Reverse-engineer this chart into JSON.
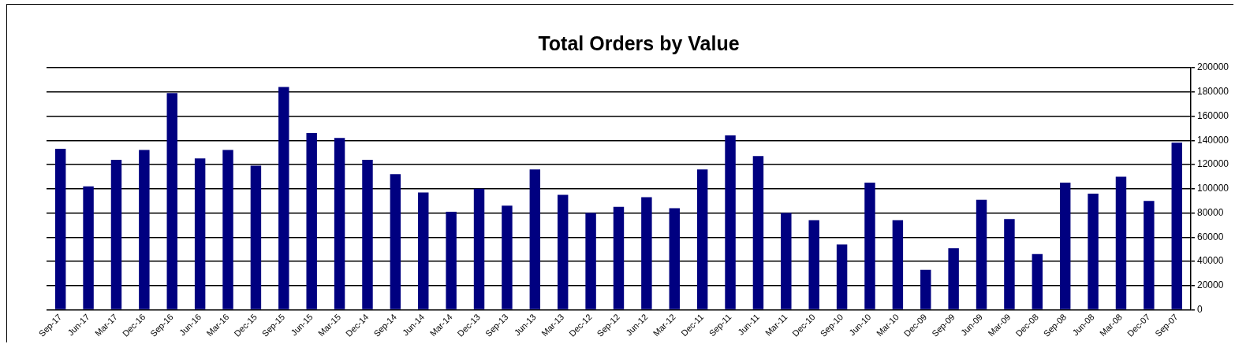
{
  "chart_data": {
    "type": "bar",
    "title": "Total Orders by Value",
    "categories": [
      "Sep-17",
      "Jun-17",
      "Mar-17",
      "Dec-16",
      "Sep-16",
      "Jun-16",
      "Mar-16",
      "Dec-15",
      "Sep-15",
      "Jun-15",
      "Mar-15",
      "Dec-14",
      "Sep-14",
      "Jun-14",
      "Mar-14",
      "Dec-13",
      "Sep-13",
      "Jun-13",
      "Mar-13",
      "Dec-12",
      "Sep-12",
      "Jun-12",
      "Mar-12",
      "Dec-11",
      "Sep-11",
      "Jun-11",
      "Mar-11",
      "Dec-10",
      "Sep-10",
      "Jun-10",
      "Mar-10",
      "Dec-09",
      "Sep-09",
      "Jun-09",
      "Mar-09",
      "Dec-08",
      "Sep-08",
      "Jun-08",
      "Mar-08",
      "Dec-07",
      "Sep-07"
    ],
    "values": [
      133000,
      102000,
      124000,
      132000,
      179000,
      125000,
      132000,
      119000,
      184000,
      146000,
      142000,
      124000,
      112000,
      97000,
      81000,
      100000,
      86000,
      116000,
      95000,
      80000,
      85000,
      93000,
      84000,
      116000,
      144000,
      127000,
      80000,
      74000,
      54000,
      105000,
      74000,
      33000,
      51000,
      91000,
      75000,
      46000,
      105000,
      96000,
      110000,
      90000,
      138000
    ],
    "color": "#000080",
    "ylim": [
      0,
      200000
    ],
    "yticks": [
      0,
      20000,
      40000,
      60000,
      80000,
      100000,
      120000,
      140000,
      160000,
      180000,
      200000
    ],
    "grid": "y"
  }
}
